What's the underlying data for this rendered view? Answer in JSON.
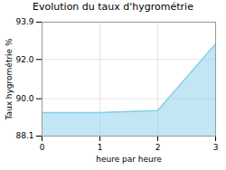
{
  "chart_data": {
    "type": "area",
    "title": "Evolution du taux d'hygrométrie",
    "xlabel": "heure par heure",
    "ylabel": "Taux hygrométrie %",
    "x": [
      0,
      1,
      2,
      3
    ],
    "series": [
      {
        "name": "Taux hygrométrie",
        "color": "#87ceeb",
        "values": [
          89.3,
          89.3,
          89.4,
          92.8
        ]
      }
    ],
    "xlim": [
      0,
      3
    ],
    "ylim": [
      88.1,
      93.9
    ],
    "xticks": [
      0,
      1,
      2,
      3
    ],
    "yticks": [
      88.1,
      {
        "value": 90.0,
        "label": "90.0"
      },
      {
        "value": 92.0,
        "label": "92.0"
      },
      93.9
    ],
    "grid": true
  }
}
